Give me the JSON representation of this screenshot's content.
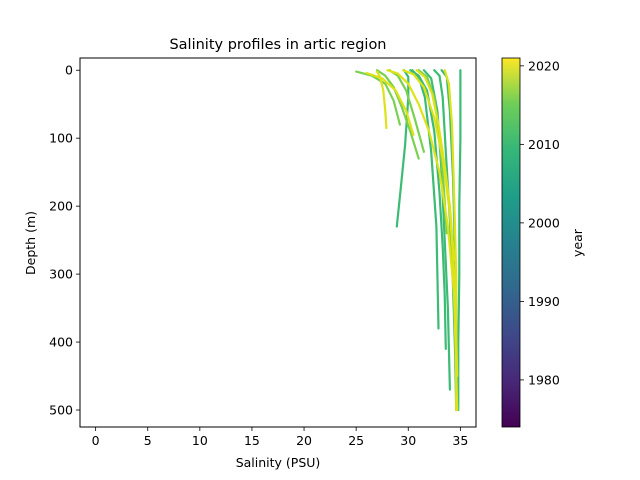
{
  "chart_data": {
    "type": "scatter",
    "title": "Salinity profiles in artic region",
    "xlabel": "Salinity (PSU)",
    "ylabel": "Depth (m)",
    "xlim": [
      -1.5,
      36.5
    ],
    "ylim": [
      525,
      -18
    ],
    "y_inverted": true,
    "grid": false,
    "x_ticks": [
      0,
      5,
      10,
      15,
      20,
      25,
      30,
      35
    ],
    "y_ticks": [
      0,
      100,
      200,
      300,
      400,
      500
    ],
    "colorbar": {
      "label": "year",
      "range": [
        1974,
        2021
      ],
      "ticks": [
        1980,
        1990,
        2000,
        2010,
        2020
      ],
      "colormap": "viridis",
      "colors": [
        "#440154",
        "#3b528b",
        "#21918c",
        "#5ec962",
        "#fde725"
      ]
    },
    "series": [
      {
        "color_value": 2008,
        "color": "#3cbb75",
        "profiles": [
          [
            [
              30.2,
              0
            ],
            [
              31.0,
              8
            ],
            [
              31.8,
              30
            ],
            [
              32.5,
              90
            ],
            [
              33.0,
              180
            ],
            [
              33.3,
              260
            ],
            [
              33.5,
              330
            ],
            [
              33.6,
              410
            ]
          ],
          [
            [
              30.4,
              0
            ],
            [
              31.0,
              10
            ],
            [
              31.6,
              40
            ],
            [
              32.2,
              120
            ],
            [
              32.7,
              230
            ],
            [
              32.9,
              380
            ]
          ],
          [
            [
              29.6,
              0
            ],
            [
              30.0,
              10
            ],
            [
              30.0,
              40
            ],
            [
              29.7,
              110
            ],
            [
              29.3,
              170
            ],
            [
              28.9,
              230
            ]
          ],
          [
            [
              32.5,
              0
            ],
            [
              33.0,
              8
            ],
            [
              33.3,
              40
            ],
            [
              33.6,
              120
            ],
            [
              34.0,
              220
            ],
            [
              34.3,
              320
            ],
            [
              34.5,
              420
            ],
            [
              34.6,
              500
            ]
          ],
          [
            [
              33.2,
              0
            ],
            [
              33.7,
              10
            ],
            [
              34.0,
              60
            ],
            [
              34.3,
              160
            ],
            [
              34.5,
              280
            ],
            [
              34.6,
              400
            ],
            [
              34.6,
              500
            ]
          ],
          [
            [
              35.0,
              0
            ],
            [
              35.0,
              100
            ],
            [
              34.9,
              200
            ],
            [
              34.9,
              300
            ],
            [
              34.8,
              400
            ],
            [
              34.8,
              500
            ]
          ],
          [
            [
              31.5,
              0
            ],
            [
              32.2,
              12
            ],
            [
              32.8,
              60
            ],
            [
              33.2,
              150
            ],
            [
              33.5,
              250
            ],
            [
              33.8,
              350
            ],
            [
              34.0,
              470
            ]
          ]
        ]
      },
      {
        "color_value": 2012,
        "color": "#7ad151",
        "profiles": [
          [
            [
              27.0,
              0
            ],
            [
              27.8,
              8
            ],
            [
              28.6,
              25
            ],
            [
              29.4,
              55
            ],
            [
              30.2,
              90
            ],
            [
              31.0,
              130
            ]
          ],
          [
            [
              28.2,
              0
            ],
            [
              29.0,
              8
            ],
            [
              29.8,
              30
            ],
            [
              30.6,
              70
            ],
            [
              31.5,
              120
            ]
          ],
          [
            [
              25.0,
              2
            ],
            [
              26.5,
              8
            ],
            [
              27.8,
              20
            ],
            [
              28.6,
              45
            ],
            [
              29.2,
              80
            ]
          ],
          [
            [
              31.0,
              0
            ],
            [
              31.8,
              10
            ],
            [
              32.5,
              40
            ],
            [
              33.0,
              100
            ],
            [
              33.4,
              170
            ],
            [
              33.7,
              240
            ]
          ]
        ]
      },
      {
        "color_value": 2019,
        "color": "#dde318",
        "profiles": [
          [
            [
              28.0,
              0
            ],
            [
              29.0,
              5
            ],
            [
              30.0,
              20
            ],
            [
              31.0,
              50
            ],
            [
              32.0,
              90
            ],
            [
              33.0,
              150
            ],
            [
              33.8,
              230
            ],
            [
              34.4,
              330
            ],
            [
              34.6,
              440
            ],
            [
              34.7,
              500
            ]
          ],
          [
            [
              29.5,
              0
            ],
            [
              30.5,
              6
            ],
            [
              31.5,
              25
            ],
            [
              32.5,
              70
            ],
            [
              33.3,
              130
            ],
            [
              34.0,
              210
            ],
            [
              34.5,
              320
            ],
            [
              34.7,
              450
            ]
          ],
          [
            [
              27.0,
              2
            ],
            [
              27.3,
              10
            ],
            [
              27.6,
              30
            ],
            [
              27.8,
              60
            ],
            [
              27.9,
              85
            ]
          ],
          [
            [
              30.8,
              0
            ],
            [
              31.6,
              10
            ],
            [
              32.3,
              35
            ],
            [
              32.9,
              80
            ],
            [
              33.5,
              140
            ],
            [
              34.0,
              200
            ],
            [
              34.4,
              280
            ]
          ],
          [
            [
              33.5,
              0
            ],
            [
              33.9,
              20
            ],
            [
              34.2,
              80
            ],
            [
              34.4,
              180
            ],
            [
              34.6,
              300
            ],
            [
              34.6,
              420
            ],
            [
              34.6,
              500
            ]
          ],
          [
            [
              26.0,
              4
            ],
            [
              27.5,
              12
            ],
            [
              28.8,
              30
            ],
            [
              29.8,
              60
            ],
            [
              30.5,
              95
            ]
          ]
        ]
      }
    ]
  }
}
